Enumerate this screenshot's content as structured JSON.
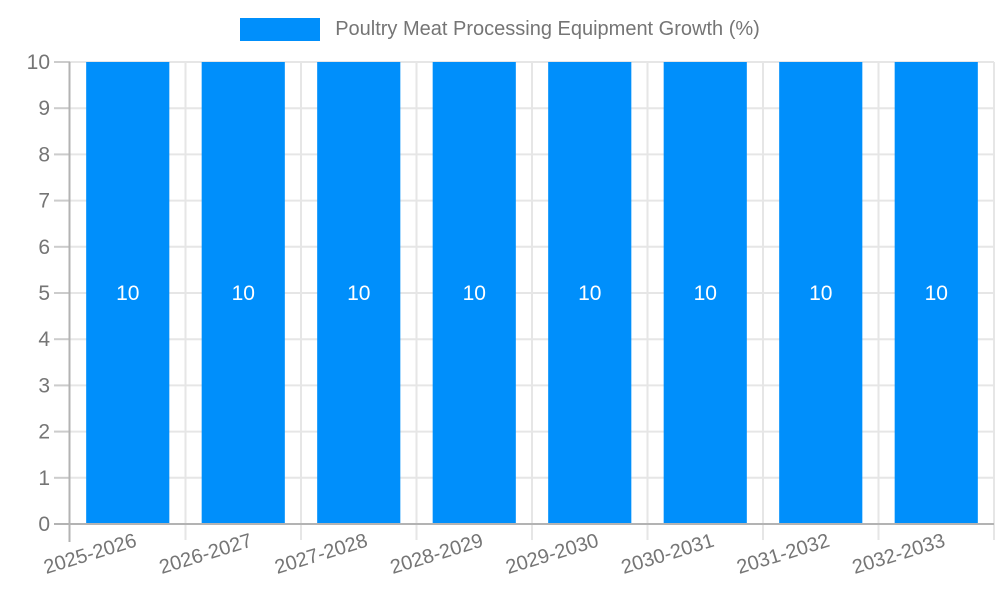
{
  "chart_data": {
    "type": "bar",
    "title": "Poultry Meat Processing Equipment Growth (%)",
    "categories": [
      "2025-2026",
      "2026-2027",
      "2027-2028",
      "2028-2029",
      "2029-2030",
      "2030-2031",
      "2031-2032",
      "2032-2033"
    ],
    "values": [
      10,
      10,
      10,
      10,
      10,
      10,
      10,
      10
    ],
    "bar_labels": [
      "10",
      "10",
      "10",
      "10",
      "10",
      "10",
      "10",
      "10"
    ],
    "xlabel": "",
    "ylabel": "",
    "ylim": [
      0,
      10
    ],
    "yticks": [
      0,
      1,
      2,
      3,
      4,
      5,
      6,
      7,
      8,
      9,
      10
    ],
    "grid": true,
    "legend_position": "top",
    "colors": {
      "bar": "#008FFB",
      "bar_label": "#FFFFFF",
      "axis_text": "#757575",
      "axis_line": "#B3B3B3",
      "grid_line": "#E6E6E6",
      "tick_line": "#CCCCCC",
      "background": "#FFFFFF"
    }
  }
}
